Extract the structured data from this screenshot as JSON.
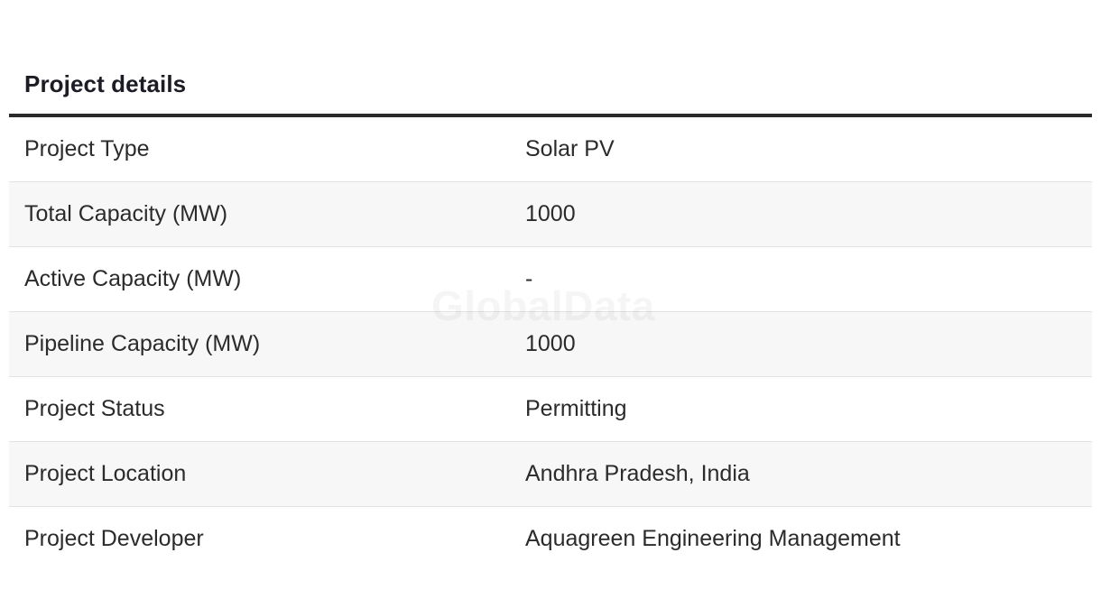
{
  "section": {
    "title": "Project details"
  },
  "rows": [
    {
      "label": "Project Type",
      "value": "Solar PV"
    },
    {
      "label": "Total Capacity (MW)",
      "value": "1000"
    },
    {
      "label": "Active Capacity (MW)",
      "value": "-"
    },
    {
      "label": "Pipeline Capacity (MW)",
      "value": "1000"
    },
    {
      "label": "Project Status",
      "value": "Permitting"
    },
    {
      "label": "Project Location",
      "value": "Andhra Pradesh, India"
    },
    {
      "label": "Project Developer",
      "value": "Aquagreen Engineering Management"
    }
  ],
  "watermark": "GlobalData",
  "colors": {
    "text": "#2b2b2b",
    "title": "#1c1c24",
    "stripe": "#f7f7f7",
    "rule": "#2b2b2b",
    "divider": "#e2e2e2"
  }
}
